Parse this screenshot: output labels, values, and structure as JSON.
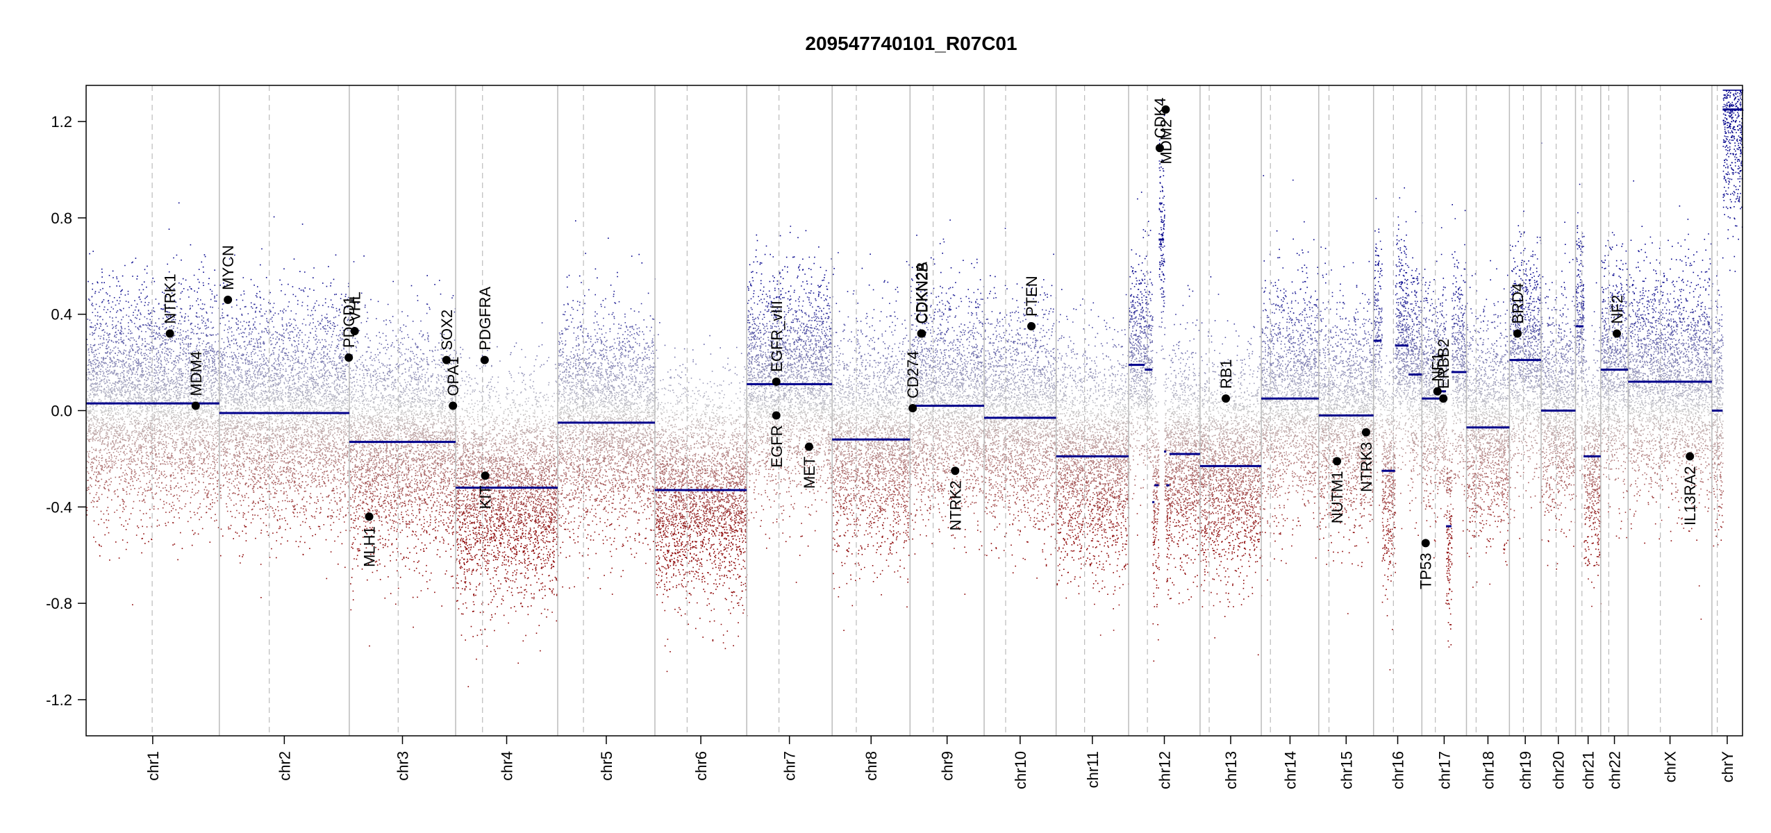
{
  "chart_data": {
    "type": "scatter",
    "title": "209547740101_R07C01",
    "xlabel": "",
    "ylabel": "",
    "ylim": [
      -1.35,
      1.35
    ],
    "yticks": [
      -1.2,
      -0.8,
      -0.4,
      0.0,
      0.4,
      0.8,
      1.2
    ],
    "ytick_labels": [
      "-1.2",
      "-0.8",
      "-0.4",
      "0.0",
      "0.4",
      "0.8",
      "1.2"
    ],
    "colors": {
      "gain": "#00008b",
      "loss": "#8b0000",
      "neutral": "#bbbbbb",
      "segment": "#00008b",
      "border": "#bbbbbb"
    },
    "chromosomes": [
      {
        "name": "chr1",
        "len": 248,
        "cen": 123,
        "seed": 1
      },
      {
        "name": "chr2",
        "len": 242,
        "cen": 93,
        "seed": 2
      },
      {
        "name": "chr3",
        "len": 198,
        "cen": 91,
        "seed": 3
      },
      {
        "name": "chr4",
        "len": 190,
        "cen": 50,
        "seed": 4
      },
      {
        "name": "chr5",
        "len": 181,
        "cen": 48,
        "seed": 5
      },
      {
        "name": "chr6",
        "len": 171,
        "cen": 60,
        "seed": 6
      },
      {
        "name": "chr7",
        "len": 159,
        "cen": 60,
        "seed": 7
      },
      {
        "name": "chr8",
        "len": 145,
        "cen": 45,
        "seed": 8
      },
      {
        "name": "chr9",
        "len": 138,
        "cen": 43,
        "seed": 9
      },
      {
        "name": "chr10",
        "len": 134,
        "cen": 40,
        "seed": 10
      },
      {
        "name": "chr11",
        "len": 135,
        "cen": 53,
        "seed": 11
      },
      {
        "name": "chr12",
        "len": 133,
        "cen": 35,
        "seed": 12
      },
      {
        "name": "chr13",
        "len": 114,
        "cen": 17,
        "seed": 13
      },
      {
        "name": "chr14",
        "len": 107,
        "cen": 17,
        "seed": 14
      },
      {
        "name": "chr15",
        "len": 102,
        "cen": 19,
        "seed": 15
      },
      {
        "name": "chr16",
        "len": 90,
        "cen": 37,
        "seed": 16
      },
      {
        "name": "chr17",
        "len": 83,
        "cen": 25,
        "seed": 17
      },
      {
        "name": "chr18",
        "len": 80,
        "cen": 18,
        "seed": 18
      },
      {
        "name": "chr19",
        "len": 59,
        "cen": 26,
        "seed": 19
      },
      {
        "name": "chr20",
        "len": 64,
        "cen": 28,
        "seed": 20
      },
      {
        "name": "chr21",
        "len": 47,
        "cen": 12,
        "seed": 21
      },
      {
        "name": "chr22",
        "len": 51,
        "cen": 15,
        "seed": 22
      },
      {
        "name": "chrX",
        "len": 156,
        "cen": 60,
        "seed": 23
      },
      {
        "name": "chrY",
        "len": 57,
        "cen": 10,
        "seed": 24
      }
    ],
    "segments": [
      {
        "chr": "chr1",
        "start": 0,
        "end": 248,
        "value": 0.03
      },
      {
        "chr": "chr2",
        "start": 0,
        "end": 242,
        "value": -0.01
      },
      {
        "chr": "chr3",
        "start": 0,
        "end": 198,
        "value": -0.13
      },
      {
        "chr": "chr4",
        "start": 0,
        "end": 190,
        "value": -0.32
      },
      {
        "chr": "chr5",
        "start": 0,
        "end": 181,
        "value": -0.05
      },
      {
        "chr": "chr6",
        "start": 0,
        "end": 171,
        "value": -0.33
      },
      {
        "chr": "chr7",
        "start": 0,
        "end": 159,
        "value": 0.11
      },
      {
        "chr": "chr8",
        "start": 0,
        "end": 145,
        "value": -0.12
      },
      {
        "chr": "chr9",
        "start": 0,
        "end": 138,
        "value": 0.02
      },
      {
        "chr": "chr10",
        "start": 0,
        "end": 134,
        "value": -0.03
      },
      {
        "chr": "chr11",
        "start": 0,
        "end": 135,
        "value": -0.19
      },
      {
        "chr": "chr12",
        "start": 0,
        "end": 30,
        "value": 0.19
      },
      {
        "chr": "chr12",
        "start": 30,
        "end": 44,
        "value": 0.17
      },
      {
        "chr": "chr12",
        "start": 44,
        "end": 48,
        "value": -0.38
      },
      {
        "chr": "chr12",
        "start": 48,
        "end": 56,
        "value": -0.31
      },
      {
        "chr": "chr12",
        "start": 56,
        "end": 66,
        "value": 0.71
      },
      {
        "chr": "chr12",
        "start": 66,
        "end": 70,
        "value": -0.17
      },
      {
        "chr": "chr12",
        "start": 70,
        "end": 76,
        "value": -0.31
      },
      {
        "chr": "chr12",
        "start": 76,
        "end": 133,
        "value": -0.18
      },
      {
        "chr": "chr13",
        "start": 0,
        "end": 114,
        "value": -0.23
      },
      {
        "chr": "chr14",
        "start": 0,
        "end": 107,
        "value": 0.05
      },
      {
        "chr": "chr15",
        "start": 0,
        "end": 102,
        "value": -0.02
      },
      {
        "chr": "chr16",
        "start": 0,
        "end": 15,
        "value": 0.29
      },
      {
        "chr": "chr16",
        "start": 15,
        "end": 40,
        "value": -0.25
      },
      {
        "chr": "chr16",
        "start": 40,
        "end": 65,
        "value": 0.27
      },
      {
        "chr": "chr16",
        "start": 65,
        "end": 90,
        "value": 0.15
      },
      {
        "chr": "chr17",
        "start": 0,
        "end": 35,
        "value": 0.05
      },
      {
        "chr": "chr17",
        "start": 35,
        "end": 45,
        "value": 0.08
      },
      {
        "chr": "chr17",
        "start": 45,
        "end": 55,
        "value": -0.48
      },
      {
        "chr": "chr17",
        "start": 55,
        "end": 83,
        "value": 0.16
      },
      {
        "chr": "chr18",
        "start": 0,
        "end": 80,
        "value": -0.07
      },
      {
        "chr": "chr19",
        "start": 0,
        "end": 59,
        "value": 0.21
      },
      {
        "chr": "chr20",
        "start": 0,
        "end": 64,
        "value": 0.0
      },
      {
        "chr": "chr21",
        "start": 0,
        "end": 15,
        "value": 0.35
      },
      {
        "chr": "chr21",
        "start": 15,
        "end": 47,
        "value": -0.19
      },
      {
        "chr": "chr22",
        "start": 0,
        "end": 51,
        "value": 0.17
      },
      {
        "chr": "chrX",
        "start": 0,
        "end": 156,
        "value": 0.12
      },
      {
        "chr": "chrY",
        "start": 0,
        "end": 20,
        "value": 0.0
      },
      {
        "chr": "chrY",
        "start": 20,
        "end": 57,
        "value": 1.25
      }
    ],
    "genes": [
      {
        "name": "NTRK1",
        "chr": "chr1",
        "pos": 156,
        "value": 0.32,
        "label_side": "above"
      },
      {
        "name": "MDM4",
        "chr": "chr1",
        "pos": 204,
        "value": 0.02,
        "label_side": "above"
      },
      {
        "name": "MYCN",
        "chr": "chr2",
        "pos": 16,
        "value": 0.46,
        "label_side": "above"
      },
      {
        "name": "PDCD1",
        "chr": "chr2",
        "pos": 241,
        "value": 0.22,
        "label_side": "above"
      },
      {
        "name": "VHL",
        "chr": "chr3",
        "pos": 10,
        "value": 0.33,
        "label_side": "above"
      },
      {
        "name": "MLH1",
        "chr": "chr3",
        "pos": 37,
        "value": -0.44,
        "label_side": "below"
      },
      {
        "name": "SOX2",
        "chr": "chr3",
        "pos": 181,
        "value": 0.21,
        "label_side": "above"
      },
      {
        "name": "OPA1",
        "chr": "chr3",
        "pos": 193,
        "value": 0.02,
        "label_side": "above"
      },
      {
        "name": "PDGFRA",
        "chr": "chr4",
        "pos": 54,
        "value": 0.21,
        "label_side": "above"
      },
      {
        "name": "KIT",
        "chr": "chr4",
        "pos": 55,
        "value": -0.27,
        "label_side": "below"
      },
      {
        "name": "EGFR_vIII",
        "chr": "chr7",
        "pos": 55,
        "value": 0.12,
        "label_side": "above"
      },
      {
        "name": "EGFR",
        "chr": "chr7",
        "pos": 55,
        "value": -0.02,
        "label_side": "below"
      },
      {
        "name": "MET",
        "chr": "chr7",
        "pos": 116,
        "value": -0.15,
        "label_side": "below"
      },
      {
        "name": "CD274",
        "chr": "chr9",
        "pos": 5,
        "value": 0.01,
        "label_side": "above"
      },
      {
        "name": "CDKN2A",
        "chr": "chr9",
        "pos": 21,
        "value": 0.32,
        "label_side": "above"
      },
      {
        "name": "CDKN2B",
        "chr": "chr9",
        "pos": 22,
        "value": 0.32,
        "label_side": "above"
      },
      {
        "name": "NTRK2",
        "chr": "chr9",
        "pos": 84,
        "value": -0.25,
        "label_side": "below"
      },
      {
        "name": "PTEN",
        "chr": "chr10",
        "pos": 88,
        "value": 0.35,
        "label_side": "above"
      },
      {
        "name": "CDK4",
        "chr": "chr12",
        "pos": 58,
        "value": 1.09,
        "label_side": "above"
      },
      {
        "name": "MDM2",
        "chr": "chr12",
        "pos": 69,
        "value": 1.25,
        "label_side": "below"
      },
      {
        "name": "RB1",
        "chr": "chr13",
        "pos": 48,
        "value": 0.05,
        "label_side": "above"
      },
      {
        "name": "NUTM1",
        "chr": "chr15",
        "pos": 34,
        "value": -0.21,
        "label_side": "below"
      },
      {
        "name": "NTRK3",
        "chr": "chr15",
        "pos": 88,
        "value": -0.09,
        "label_side": "below"
      },
      {
        "name": "TP53",
        "chr": "chr17",
        "pos": 7,
        "value": -0.55,
        "label_side": "below"
      },
      {
        "name": "NF1",
        "chr": "chr17",
        "pos": 29,
        "value": 0.08,
        "label_side": "above"
      },
      {
        "name": "ERBB2",
        "chr": "chr17",
        "pos": 40,
        "value": 0.05,
        "label_side": "above"
      },
      {
        "name": "BRD4",
        "chr": "chr19",
        "pos": 15,
        "value": 0.32,
        "label_side": "above"
      },
      {
        "name": "NF2",
        "chr": "chr22",
        "pos": 30,
        "value": 0.32,
        "label_side": "above"
      },
      {
        "name": "IL13RA2",
        "chr": "chrX",
        "pos": 115,
        "value": -0.19,
        "label_side": "below"
      }
    ]
  }
}
